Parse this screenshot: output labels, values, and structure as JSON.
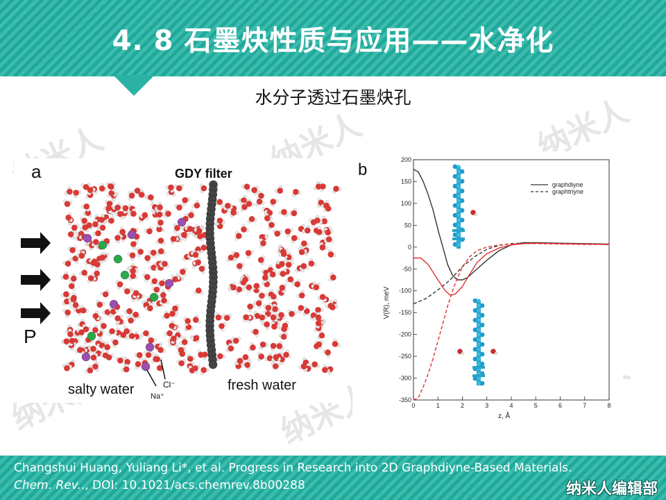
{
  "slide": {
    "title": "4. 8  石墨炔性质与应用——水净化",
    "subtitle": "水分子透过石墨炔孔",
    "watermark": "纳米人",
    "brand": "纳米人编辑部",
    "colors": {
      "header": "#2ab3a4",
      "water_oxygen": "#d83a36",
      "hydrogen": "#e9e9e9",
      "carbon": "#444444"
    }
  },
  "panel_a": {
    "letter": "a",
    "filter_label": "GDY filter",
    "pressure_label": "P",
    "left_label": "salty water",
    "right_label": "fresh water",
    "na_label": "Na⁺",
    "cl_label": "Cl⁻"
  },
  "panel_b": {
    "letter": "b"
  },
  "chart_data": {
    "type": "line",
    "xlabel": "z, Å",
    "ylabel": "V(R), meV",
    "xlim": [
      0,
      8
    ],
    "ylim": [
      -350,
      200
    ],
    "xticks": [
      0,
      1,
      2,
      3,
      4,
      5,
      6,
      7,
      8
    ],
    "yticks": [
      200,
      150,
      100,
      50,
      0,
      -50,
      -100,
      -150,
      -200,
      -250,
      -300,
      -350
    ],
    "legend_position": "top-right",
    "series": [
      {
        "name": "graphdiyne",
        "color": "#333333",
        "dash": false,
        "x": [
          0,
          0.2,
          0.4,
          0.6,
          0.8,
          1.0,
          1.2,
          1.4,
          1.6,
          1.8,
          2.0,
          2.2,
          2.5,
          3.0,
          3.5,
          4.0,
          4.5,
          5.0,
          6.0,
          7.0,
          8.0
        ],
        "y": [
          178,
          172,
          150,
          120,
          85,
          40,
          0,
          -40,
          -65,
          -75,
          -75,
          -70,
          -55,
          -30,
          -8,
          5,
          10,
          10,
          9,
          8,
          7
        ]
      },
      {
        "name": "graphtriyne",
        "color": "#333333",
        "dash": true,
        "x": [
          0,
          0.5,
          1.0,
          1.5,
          2.0,
          2.5,
          3.0,
          3.5,
          4.0,
          4.5,
          5.0,
          6.0,
          7.0,
          8.0
        ],
        "y": [
          -130,
          -118,
          -98,
          -75,
          -45,
          -22,
          -5,
          4,
          8,
          9,
          9,
          8,
          7,
          6
        ]
      },
      {
        "color": "#e03030",
        "dash": false,
        "x": [
          0,
          0.3,
          0.6,
          1.0,
          1.3,
          1.5,
          1.7,
          2.0,
          2.3,
          2.6,
          3.0,
          3.5,
          4.0,
          4.5,
          5.0,
          6.0,
          7.0,
          8.0
        ],
        "y": [
          -25,
          -25,
          -40,
          -75,
          -100,
          -110,
          -108,
          -90,
          -62,
          -35,
          -15,
          -2,
          5,
          8,
          9,
          8,
          7,
          6
        ]
      },
      {
        "color": "#e03030",
        "dash": true,
        "x": [
          0,
          0.2,
          0.4,
          0.6,
          0.8,
          1.0,
          1.2,
          1.4,
          1.6,
          1.8,
          2.0,
          2.3,
          2.6,
          3.0,
          3.5,
          4.0,
          4.5,
          5.0,
          6.0,
          7.0,
          8.0
        ],
        "y": [
          -350,
          -345,
          -320,
          -290,
          -255,
          -215,
          -175,
          -135,
          -100,
          -70,
          -45,
          -22,
          -8,
          0,
          5,
          7,
          8,
          8,
          7,
          6,
          6
        ]
      }
    ]
  },
  "citation": {
    "line1": "Changshui Huang, Yuliang Li*, et al. Progress in Research into 2D Graphdiyne-Based Materials.",
    "journal": "Chem. Rev.",
    "doi": "., DOI: 10.1021/acs.chemrev.8b00288"
  }
}
